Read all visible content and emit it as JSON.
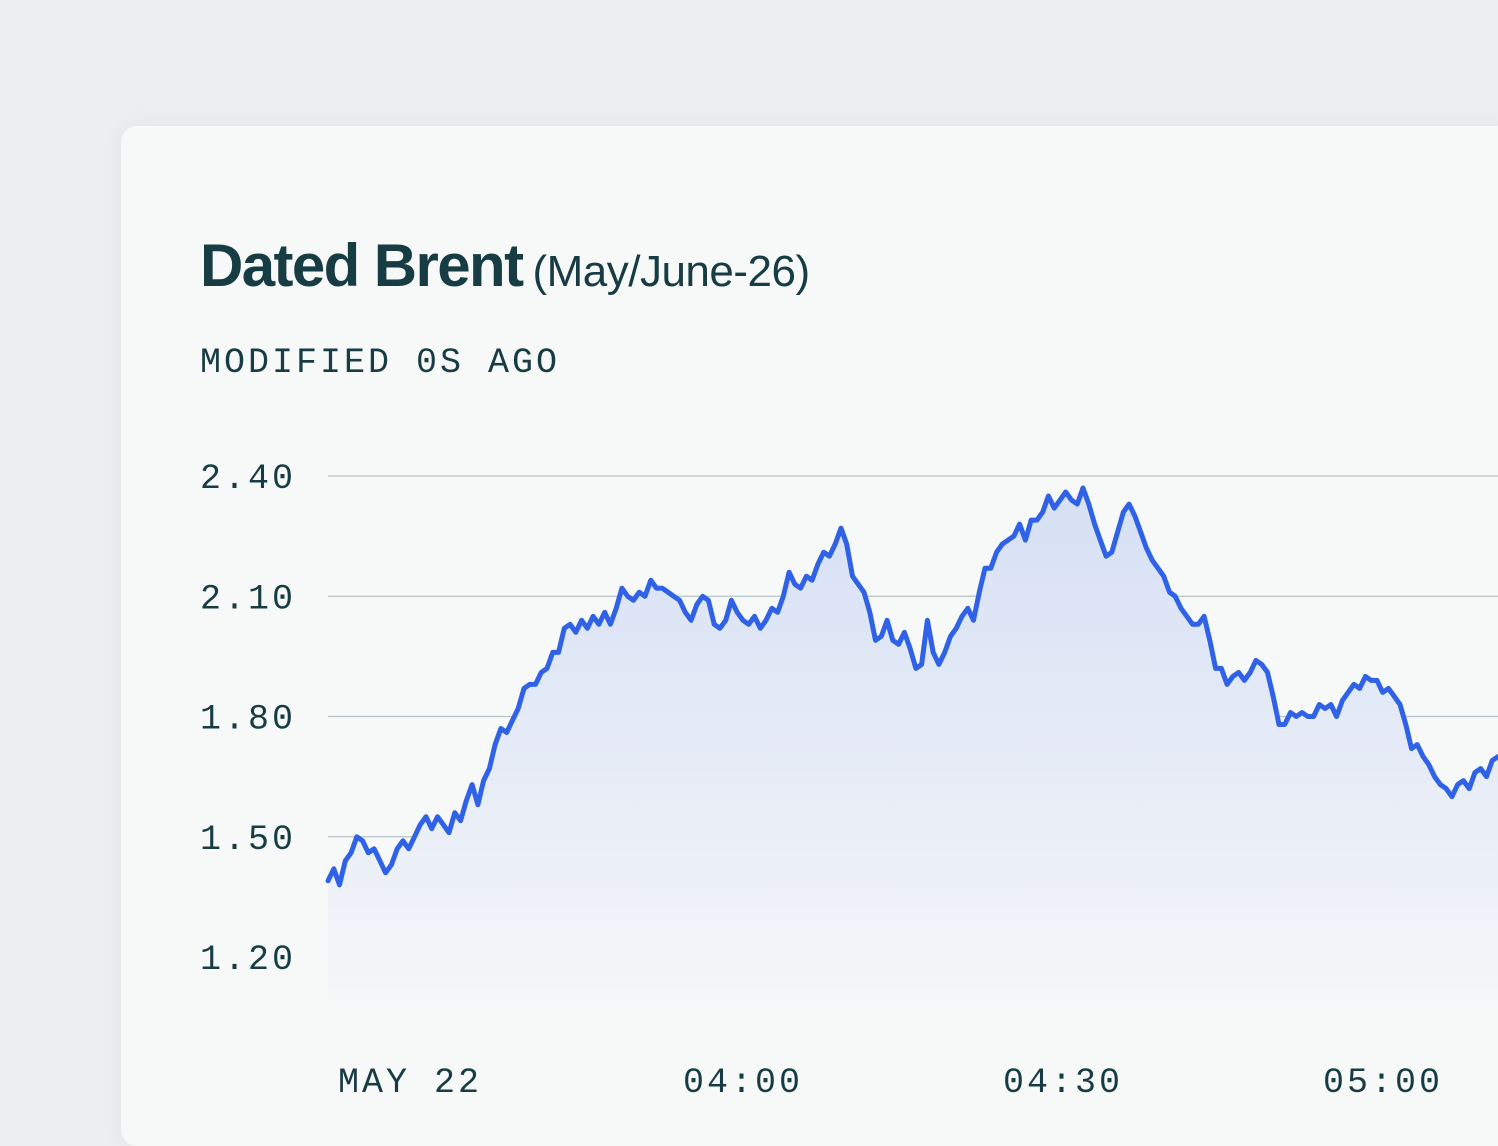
{
  "card": {
    "title": "Dated Brent",
    "subtitle": "(May/June-26)",
    "modified": "MODIFIED 0S AGO"
  },
  "colors": {
    "line": "#2f62e6",
    "text": "#173c43",
    "grid": "#b7c3c6"
  },
  "chart_data": {
    "type": "area",
    "yticks": [
      {
        "value": 2.4,
        "label": "2.40"
      },
      {
        "value": 2.1,
        "label": "2.10"
      },
      {
        "value": 1.8,
        "label": "1.80"
      },
      {
        "value": 1.5,
        "label": "1.50"
      },
      {
        "value": 1.2,
        "label": "1.20"
      }
    ],
    "xticks": [
      {
        "value": 0,
        "label": "MAY 22"
      },
      {
        "value": 1,
        "label": "04:00"
      },
      {
        "value": 2,
        "label": "04:30"
      },
      {
        "value": 3,
        "label": "05:00"
      }
    ],
    "ylim": [
      1.2,
      2.4
    ],
    "grid": true,
    "legend": "none",
    "series": [
      {
        "values": [
          1.39,
          1.42,
          1.38,
          1.44,
          1.46,
          1.5,
          1.49,
          1.46,
          1.47,
          1.44,
          1.41,
          1.43,
          1.47,
          1.49,
          1.47,
          1.5,
          1.53,
          1.55,
          1.52,
          1.55,
          1.53,
          1.51,
          1.56,
          1.54,
          1.59,
          1.63,
          1.58,
          1.64,
          1.67,
          1.73,
          1.77,
          1.76,
          1.79,
          1.82,
          1.87,
          1.88,
          1.88,
          1.91,
          1.92,
          1.96,
          1.96,
          2.02,
          2.03,
          2.01,
          2.04,
          2.02,
          2.05,
          2.03,
          2.06,
          2.03,
          2.07,
          2.12,
          2.1,
          2.09,
          2.11,
          2.1,
          2.14,
          2.12,
          2.12,
          2.11,
          2.1,
          2.09,
          2.06,
          2.04,
          2.08,
          2.1,
          2.09,
          2.03,
          2.02,
          2.04,
          2.09,
          2.06,
          2.04,
          2.03,
          2.05,
          2.02,
          2.04,
          2.07,
          2.06,
          2.1,
          2.16,
          2.13,
          2.12,
          2.15,
          2.14,
          2.18,
          2.21,
          2.2,
          2.23,
          2.27,
          2.23,
          2.15,
          2.13,
          2.11,
          2.06,
          1.99,
          2.0,
          2.04,
          1.99,
          1.98,
          2.01,
          1.97,
          1.92,
          1.93,
          2.04,
          1.96,
          1.93,
          1.96,
          2.0,
          2.02,
          2.05,
          2.07,
          2.04,
          2.11,
          2.17,
          2.17,
          2.21,
          2.23,
          2.24,
          2.25,
          2.28,
          2.24,
          2.29,
          2.29,
          2.31,
          2.35,
          2.32,
          2.34,
          2.36,
          2.34,
          2.33,
          2.37,
          2.33,
          2.28,
          2.24,
          2.2,
          2.21,
          2.26,
          2.31,
          2.33,
          2.3,
          2.26,
          2.22,
          2.19,
          2.17,
          2.15,
          2.11,
          2.1,
          2.07,
          2.05,
          2.03,
          2.03,
          2.05,
          1.99,
          1.92,
          1.92,
          1.88,
          1.9,
          1.91,
          1.89,
          1.91,
          1.94,
          1.93,
          1.91,
          1.85,
          1.78,
          1.78,
          1.81,
          1.8,
          1.81,
          1.8,
          1.8,
          1.83,
          1.82,
          1.83,
          1.8,
          1.84,
          1.86,
          1.88,
          1.87,
          1.9,
          1.89,
          1.89,
          1.86,
          1.87,
          1.85,
          1.83,
          1.78,
          1.72,
          1.73,
          1.7,
          1.68,
          1.65,
          1.63,
          1.62,
          1.6,
          1.63,
          1.64,
          1.62,
          1.66,
          1.67,
          1.65,
          1.69,
          1.7
        ]
      }
    ]
  }
}
